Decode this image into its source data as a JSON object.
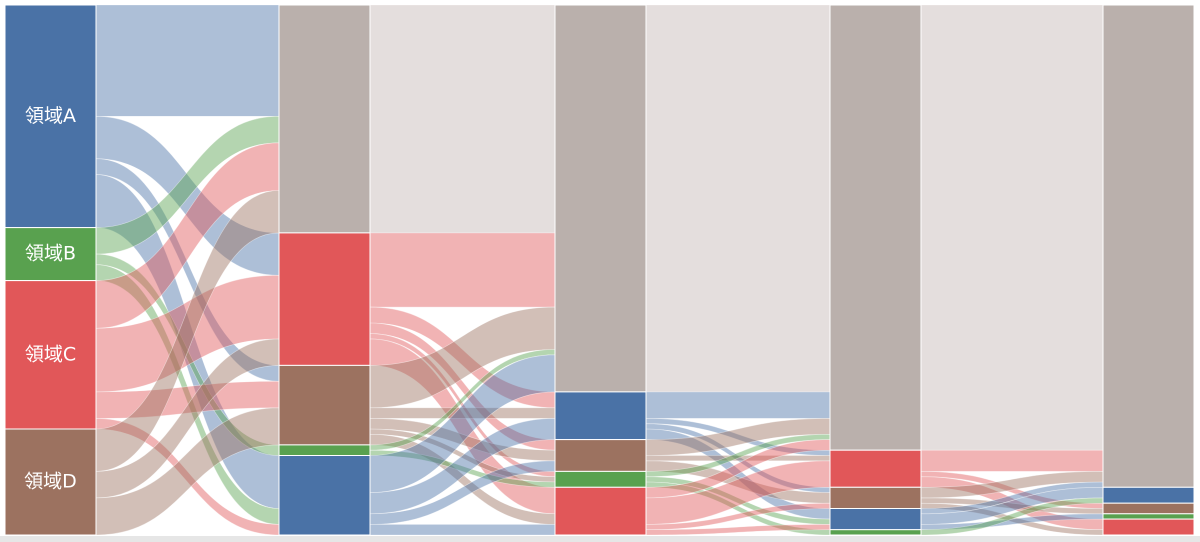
{
  "chart_data": {
    "type": "alluvial",
    "columns": [
      {
        "nodes": [
          {
            "label": "領域A",
            "color": "#4a72a6",
            "value": 42
          },
          {
            "label": "領域B",
            "color": "#59a14f",
            "value": 10
          },
          {
            "label": "領域C",
            "color": "#e15759",
            "value": 28
          },
          {
            "label": "領域D",
            "color": "#9c7260",
            "value": 20
          }
        ]
      },
      {
        "nodes": [
          {
            "color": "#bab0ac",
            "value": 43
          },
          {
            "color": "#e15759",
            "value": 25
          },
          {
            "color": "#9c7260",
            "value": 15
          },
          {
            "color": "#59a14f",
            "value": 2
          },
          {
            "color": "#4a72a6",
            "value": 15
          }
        ]
      },
      {
        "nodes": [
          {
            "color": "#bab0ac",
            "value": 73
          },
          {
            "color": "#4a72a6",
            "value": 9
          },
          {
            "color": "#9c7260",
            "value": 6
          },
          {
            "color": "#59a14f",
            "value": 3
          },
          {
            "color": "#e15759",
            "value": 9
          }
        ]
      },
      {
        "nodes": [
          {
            "color": "#bab0ac",
            "value": 84
          },
          {
            "color": "#e15759",
            "value": 7
          },
          {
            "color": "#9c7260",
            "value": 4
          },
          {
            "color": "#4a72a6",
            "value": 4
          },
          {
            "color": "#59a14f",
            "value": 1
          }
        ]
      },
      {
        "nodes": [
          {
            "color": "#bab0ac",
            "value": 91
          },
          {
            "color": "#4a72a6",
            "value": 3
          },
          {
            "color": "#9c7260",
            "value": 2
          },
          {
            "color": "#59a14f",
            "value": 1
          },
          {
            "color": "#e15759",
            "value": 3
          }
        ]
      }
    ],
    "links": [
      [
        {
          "source": 0,
          "target": 0,
          "value": 21
        },
        {
          "source": 0,
          "target": 1,
          "value": 8
        },
        {
          "source": 0,
          "target": 2,
          "value": 3
        },
        {
          "source": 0,
          "target": 4,
          "value": 10
        },
        {
          "source": 1,
          "target": 0,
          "value": 5
        },
        {
          "source": 1,
          "target": 3,
          "value": 2
        },
        {
          "source": 1,
          "target": 4,
          "value": 3
        },
        {
          "source": 2,
          "target": 0,
          "value": 9
        },
        {
          "source": 2,
          "target": 1,
          "value": 12
        },
        {
          "source": 2,
          "target": 2,
          "value": 5
        },
        {
          "source": 2,
          "target": 4,
          "value": 2
        },
        {
          "source": 3,
          "target": 0,
          "value": 8
        },
        {
          "source": 3,
          "target": 1,
          "value": 5
        },
        {
          "source": 3,
          "target": 2,
          "value": 7
        }
      ],
      [
        {
          "source": 0,
          "target": 0,
          "value": 43
        },
        {
          "source": 1,
          "target": 0,
          "value": 14
        },
        {
          "source": 1,
          "target": 1,
          "value": 3
        },
        {
          "source": 1,
          "target": 2,
          "value": 2
        },
        {
          "source": 1,
          "target": 3,
          "value": 1
        },
        {
          "source": 1,
          "target": 4,
          "value": 5
        },
        {
          "source": 2,
          "target": 0,
          "value": 8
        },
        {
          "source": 2,
          "target": 1,
          "value": 2
        },
        {
          "source": 2,
          "target": 2,
          "value": 2
        },
        {
          "source": 2,
          "target": 3,
          "value": 1
        },
        {
          "source": 2,
          "target": 4,
          "value": 2
        },
        {
          "source": 3,
          "target": 0,
          "value": 1
        },
        {
          "source": 3,
          "target": 3,
          "value": 1
        },
        {
          "source": 4,
          "target": 0,
          "value": 7
        },
        {
          "source": 4,
          "target": 1,
          "value": 4
        },
        {
          "source": 4,
          "target": 2,
          "value": 2
        },
        {
          "source": 4,
          "target": 4,
          "value": 2
        }
      ],
      [
        {
          "source": 0,
          "target": 0,
          "value": 73
        },
        {
          "source": 1,
          "target": 0,
          "value": 5
        },
        {
          "source": 1,
          "target": 1,
          "value": 1
        },
        {
          "source": 1,
          "target": 2,
          "value": 1
        },
        {
          "source": 1,
          "target": 3,
          "value": 2
        },
        {
          "source": 2,
          "target": 0,
          "value": 3
        },
        {
          "source": 2,
          "target": 1,
          "value": 1
        },
        {
          "source": 2,
          "target": 2,
          "value": 2
        },
        {
          "source": 3,
          "target": 0,
          "value": 1
        },
        {
          "source": 3,
          "target": 3,
          "value": 1
        },
        {
          "source": 3,
          "target": 4,
          "value": 1
        },
        {
          "source": 4,
          "target": 0,
          "value": 2
        },
        {
          "source": 4,
          "target": 1,
          "value": 5
        },
        {
          "source": 4,
          "target": 2,
          "value": 1
        },
        {
          "source": 4,
          "target": 3,
          "value": 1
        }
      ],
      [
        {
          "source": 0,
          "target": 0,
          "value": 84
        },
        {
          "source": 1,
          "target": 0,
          "value": 4
        },
        {
          "source": 1,
          "target": 2,
          "value": 1
        },
        {
          "source": 1,
          "target": 4,
          "value": 2
        },
        {
          "source": 2,
          "target": 0,
          "value": 2
        },
        {
          "source": 2,
          "target": 2,
          "value": 1
        },
        {
          "source": 2,
          "target": 4,
          "value": 1
        },
        {
          "source": 3,
          "target": 0,
          "value": 1
        },
        {
          "source": 3,
          "target": 1,
          "value": 2
        },
        {
          "source": 3,
          "target": 3,
          "value": 1
        },
        {
          "source": 4,
          "target": 1,
          "value": 1
        }
      ]
    ]
  }
}
